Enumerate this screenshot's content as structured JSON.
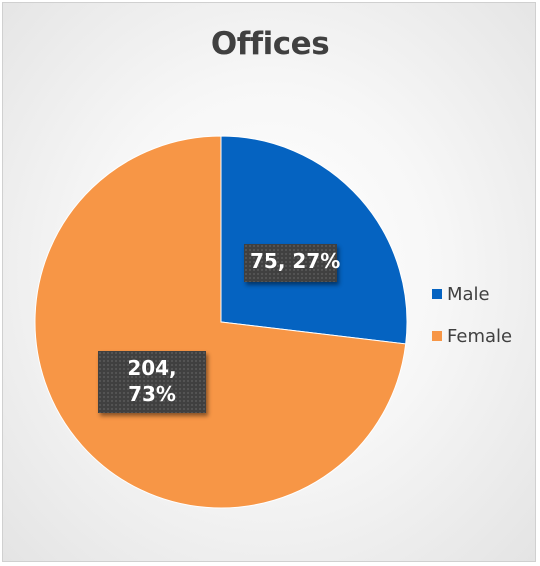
{
  "chart_data": {
    "type": "pie",
    "title": "Offices",
    "categories": [
      "Male",
      "Female"
    ],
    "values": [
      75,
      204
    ],
    "percentages": [
      "27%",
      "73%"
    ],
    "data_labels": [
      "75, 27%",
      "204, 73%"
    ],
    "colors": [
      "#0563C1",
      "#F79646"
    ],
    "start_angle_deg": 0,
    "direction": "clockwise",
    "legend_position": "right"
  },
  "legend": {
    "items": [
      {
        "label": "Male",
        "color": "#0563C1"
      },
      {
        "label": "Female",
        "color": "#F79646"
      }
    ]
  },
  "labels": {
    "female_line1": "204,",
    "female_line2": "73%"
  }
}
